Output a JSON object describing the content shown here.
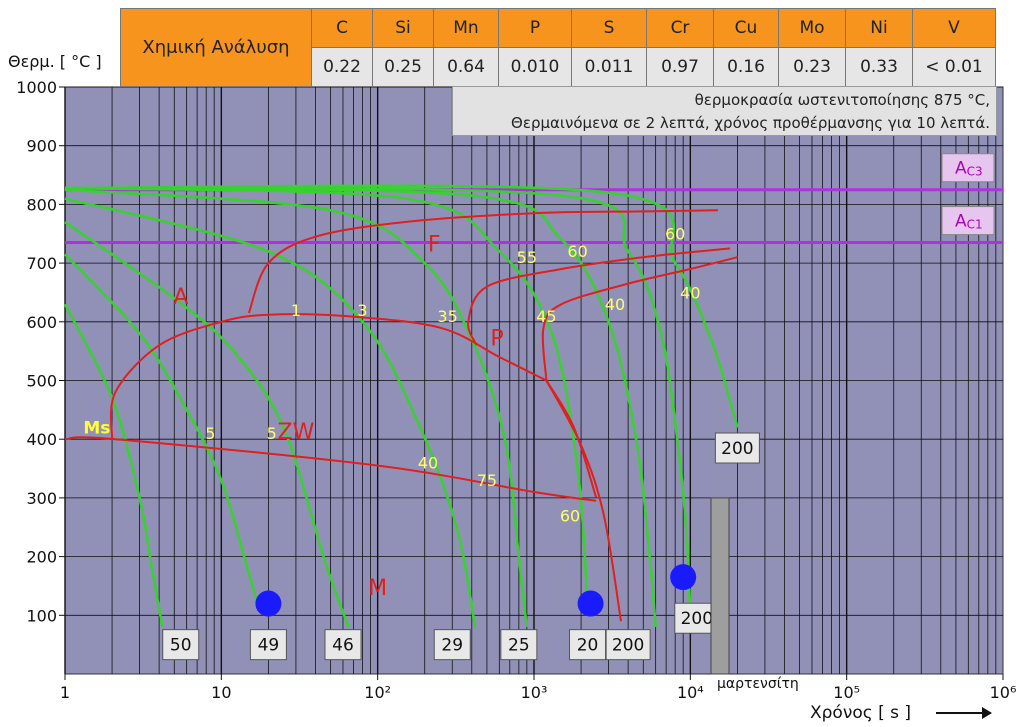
{
  "composition": {
    "title": "Χημική Ανάλυση",
    "elements": [
      "C",
      "Si",
      "Mn",
      "P",
      "S",
      "Cr",
      "Cu",
      "Mo",
      "Ni",
      "V"
    ],
    "values": [
      "0.22",
      "0.25",
      "0.64",
      "0.010",
      "0.011",
      "0.97",
      "0.16",
      "0.23",
      "0.33",
      "< 0.01"
    ]
  },
  "conditions": {
    "line1": "θερμοκρασία ωστενιτοποίησης 875 °C,",
    "line2": "Θερμαινόμενα σε 2 λεπτά, χρόνος προθέρμανσης για 10 λεπτά."
  },
  "chart_data": {
    "type": "line",
    "title": "",
    "xlabel": "Χρόνος [ s ]",
    "ylabel": "Θερμ. [ °C ]",
    "x_scale": "log",
    "xlim": [
      1,
      1000000
    ],
    "ylim": [
      0,
      1000
    ],
    "x_ticks": [
      "1",
      "10",
      "10²",
      "10³",
      "10⁴",
      "10⁵",
      "10⁶"
    ],
    "y_ticks": [
      "100",
      "200",
      "300",
      "400",
      "500",
      "600",
      "700",
      "800",
      "900",
      "1000"
    ],
    "grid": true,
    "colors": {
      "cooling": "#39d130",
      "phase": "#e0201e",
      "critical": "#b030e0",
      "plot_bg": "#9191b8",
      "label": "#ffff66"
    },
    "critical_lines": [
      {
        "name": "AC3",
        "label_main": "A",
        "label_sub": "C3",
        "y": 825
      },
      {
        "name": "AC1",
        "label_main": "A",
        "label_sub": "C1",
        "y": 735
      }
    ],
    "cooling_curves": [
      {
        "hardness": "50",
        "points": [
          [
            1,
            630
          ],
          [
            2,
            470
          ],
          [
            3,
            300
          ],
          [
            3.6,
            180
          ],
          [
            4.2,
            80
          ]
        ]
      },
      {
        "hardness": "49",
        "points": [
          [
            1,
            715
          ],
          [
            3,
            580
          ],
          [
            6,
            450
          ],
          [
            10,
            330
          ],
          [
            14,
            200
          ],
          [
            17,
            120
          ]
        ]
      },
      {
        "hardness": "46",
        "points": [
          [
            1,
            770
          ],
          [
            5,
            640
          ],
          [
            12,
            550
          ],
          [
            25,
            420
          ],
          [
            45,
            200
          ],
          [
            65,
            80
          ]
        ]
      },
      {
        "hardness": "29",
        "points": [
          [
            1,
            810
          ],
          [
            20,
            720
          ],
          [
            80,
            600
          ],
          [
            180,
            430
          ],
          [
            320,
            250
          ],
          [
            420,
            80
          ]
        ]
      },
      {
        "hardness": "25",
        "points": [
          [
            1,
            825
          ],
          [
            50,
            790
          ],
          [
            200,
            700
          ],
          [
            400,
            570
          ],
          [
            650,
            400
          ],
          [
            800,
            200
          ],
          [
            900,
            80
          ]
        ]
      },
      {
        "hardness": "20",
        "points": [
          [
            1,
            828
          ],
          [
            150,
            810
          ],
          [
            600,
            720
          ],
          [
            1300,
            580
          ],
          [
            1900,
            350
          ],
          [
            2200,
            120
          ]
        ]
      },
      {
        "hardness": "200",
        "points": [
          [
            1,
            828
          ],
          [
            400,
            815
          ],
          [
            1500,
            740
          ],
          [
            3000,
            600
          ],
          [
            4500,
            400
          ],
          [
            5500,
            200
          ],
          [
            6000,
            80
          ]
        ]
      },
      {
        "hardness": "200",
        "points": [
          [
            1,
            828
          ],
          [
            1500,
            815
          ],
          [
            4000,
            720
          ],
          [
            6500,
            580
          ],
          [
            8500,
            370
          ],
          [
            9500,
            230
          ],
          [
            10000,
            100
          ]
        ]
      },
      {
        "hardness": "200",
        "points": [
          [
            1,
            828
          ],
          [
            3000,
            820
          ],
          [
            8000,
            700
          ],
          [
            14000,
            560
          ],
          [
            20000,
            420
          ]
        ]
      }
    ],
    "hardness_markers": [
      {
        "text": "50",
        "x": 5.5
      },
      {
        "text": "49",
        "x": 20
      },
      {
        "text": "46",
        "x": 60
      },
      {
        "text": "29",
        "x": 300
      },
      {
        "text": "25",
        "x": 800
      },
      {
        "text": "20",
        "x": 2200
      },
      {
        "text": "200",
        "x": 4000
      },
      {
        "text": "200",
        "x": 11000,
        "y": 95
      },
      {
        "text": "200",
        "x": 20000,
        "y": 385
      }
    ],
    "curve_labels": [
      {
        "text": "1",
        "x": 30,
        "y": 610
      },
      {
        "text": "3",
        "x": 80,
        "y": 610
      },
      {
        "text": "35",
        "x": 280,
        "y": 600
      },
      {
        "text": "55",
        "x": 900,
        "y": 700
      },
      {
        "text": "60",
        "x": 1900,
        "y": 710
      },
      {
        "text": "60",
        "x": 8000,
        "y": 740
      },
      {
        "text": "45",
        "x": 1200,
        "y": 600
      },
      {
        "text": "40",
        "x": 3300,
        "y": 620
      },
      {
        "text": "40",
        "x": 10000,
        "y": 640
      },
      {
        "text": "5",
        "x": 8.5,
        "y": 400
      },
      {
        "text": "5",
        "x": 21,
        "y": 400
      },
      {
        "text": "40",
        "x": 210,
        "y": 350
      },
      {
        "text": "75",
        "x": 500,
        "y": 320
      },
      {
        "text": "60",
        "x": 1700,
        "y": 260
      }
    ],
    "phase_labels": [
      {
        "text": "A",
        "x": 5.5,
        "y": 630
      },
      {
        "text": "F",
        "x": 230,
        "y": 720
      },
      {
        "text": "P",
        "x": 580,
        "y": 560
      },
      {
        "text": "ZW",
        "x": 30,
        "y": 400
      },
      {
        "text": "M",
        "x": 100,
        "y": 135
      },
      {
        "text": "Ms",
        "x": 1.6,
        "y": 410
      }
    ],
    "phase_boundaries": [
      {
        "name": "ferrite-start",
        "points": [
          [
            15,
            615
          ],
          [
            20,
            700
          ],
          [
            40,
            745
          ],
          [
            150,
            770
          ],
          [
            1000,
            785
          ],
          [
            5000,
            788
          ],
          [
            15000,
            790
          ]
        ]
      },
      {
        "name": "bainite-nose",
        "points": [
          [
            2,
            400
          ],
          [
            2.1,
            480
          ],
          [
            4,
            560
          ],
          [
            10,
            600
          ],
          [
            20,
            612
          ],
          [
            60,
            610
          ],
          [
            250,
            590
          ],
          [
            600,
            540
          ],
          [
            1200,
            500
          ]
        ]
      },
      {
        "name": "pearlite-start",
        "points": [
          [
            430,
            560
          ],
          [
            380,
            600
          ],
          [
            500,
            660
          ],
          [
            1500,
            690
          ],
          [
            5000,
            710
          ],
          [
            18000,
            725
          ]
        ]
      },
      {
        "name": "pearlite-end",
        "points": [
          [
            1200,
            500
          ],
          [
            1150,
            590
          ],
          [
            1500,
            630
          ],
          [
            4000,
            665
          ],
          [
            10000,
            690
          ],
          [
            20000,
            710
          ]
        ]
      },
      {
        "name": "bainite-end",
        "points": [
          [
            1200,
            500
          ],
          [
            2000,
            390
          ],
          [
            2800,
            270
          ],
          [
            3600,
            90
          ]
        ]
      },
      {
        "name": "ms-line",
        "points": [
          [
            1,
            400
          ],
          [
            2.1,
            400
          ],
          [
            100,
            355
          ],
          [
            1000,
            310
          ],
          [
            2500,
            295
          ]
        ]
      },
      {
        "name": "b-tail",
        "points": [
          [
            1200,
            500
          ],
          [
            1800,
            420
          ],
          [
            2500,
            300
          ]
        ]
      }
    ],
    "measurement_points": [
      {
        "x": 20,
        "y": 120
      },
      {
        "x": 2300,
        "y": 120
      },
      {
        "x": 9000,
        "y": 165
      }
    ],
    "martensite_scale_label": "μαρτενσίτη"
  }
}
